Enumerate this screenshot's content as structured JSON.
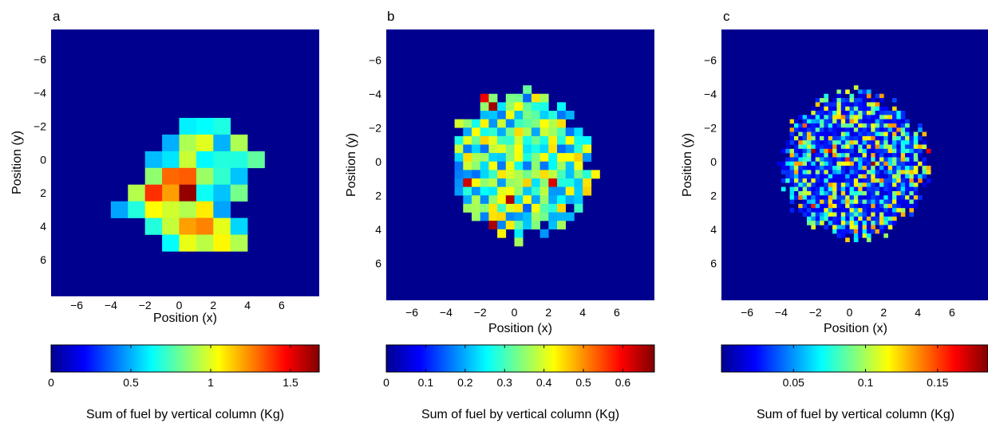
{
  "chart_data": [
    {
      "type": "heatmap",
      "panel_label": "a",
      "xlabel": "Position (x)",
      "ylabel": "Position (y)",
      "xlim": [
        -7.5,
        8.2
      ],
      "ylim": [
        -7.8,
        8.2
      ],
      "y_inverted": true,
      "x_ticks": [
        -6,
        -4,
        -2,
        0,
        2,
        4,
        6
      ],
      "y_ticks": [
        -6,
        -4,
        -2,
        0,
        2,
        4,
        6
      ],
      "grid": false,
      "colormap": "jet",
      "colorbar": {
        "label": "Sum of fuel by vertical column (Kg)",
        "range": [
          0,
          1.68
        ],
        "ticks": [
          0,
          0.5,
          1,
          1.5
        ],
        "tick_labels": [
          "0",
          "0.5",
          "1",
          "1.5"
        ]
      },
      "grid_origin": [
        -4,
        -3.5
      ],
      "cell_size": 1,
      "cells": [
        "..........",
        "....+++...",
        "...+++++..",
        "..+++++++.",
        "..+##+++..",
        ".+##@+++..",
        "+++++++...",
        "..++##++..",
        "...+++++..",
        ".........."
      ],
      "zmax": 1.68
    },
    {
      "type": "heatmap",
      "panel_label": "b",
      "xlabel": "Position (x)",
      "ylabel": "Position (y)",
      "xlim": [
        -7.5,
        8.2
      ],
      "ylim": [
        -7.8,
        8.2
      ],
      "y_inverted": true,
      "x_ticks": [
        -6,
        -4,
        -2,
        0,
        2,
        4,
        6
      ],
      "y_ticks": [
        -6,
        -4,
        -2,
        0,
        2,
        4,
        6
      ],
      "grid": false,
      "colormap": "jet",
      "colorbar": {
        "label": "Sum of fuel by vertical column (Kg)",
        "range": [
          0,
          0.68
        ],
        "ticks": [
          0,
          0.1,
          0.2,
          0.3,
          0.4,
          0.5,
          0.6
        ],
        "tick_labels": [
          "0",
          "0.1",
          "0.2",
          "0.3",
          "0.4",
          "0.5",
          "0.6"
        ]
      },
      "zmax": 0.68
    },
    {
      "type": "heatmap",
      "panel_label": "c",
      "xlabel": "Position (x)",
      "ylabel": "Position (y)",
      "xlim": [
        -7.5,
        8.2
      ],
      "ylim": [
        -7.8,
        8.2
      ],
      "y_inverted": true,
      "x_ticks": [
        -6,
        -4,
        -2,
        0,
        2,
        4,
        6
      ],
      "y_ticks": [
        -6,
        -4,
        -2,
        0,
        2,
        4,
        6
      ],
      "grid": false,
      "colormap": "jet",
      "colorbar": {
        "label": "Sum of fuel by vertical column (Kg)",
        "range": [
          0,
          0.185
        ],
        "ticks": [
          0.05,
          0.1,
          0.15
        ],
        "tick_labels": [
          "0.05",
          "0.1",
          "0.15"
        ]
      },
      "zmax": 0.185
    }
  ]
}
